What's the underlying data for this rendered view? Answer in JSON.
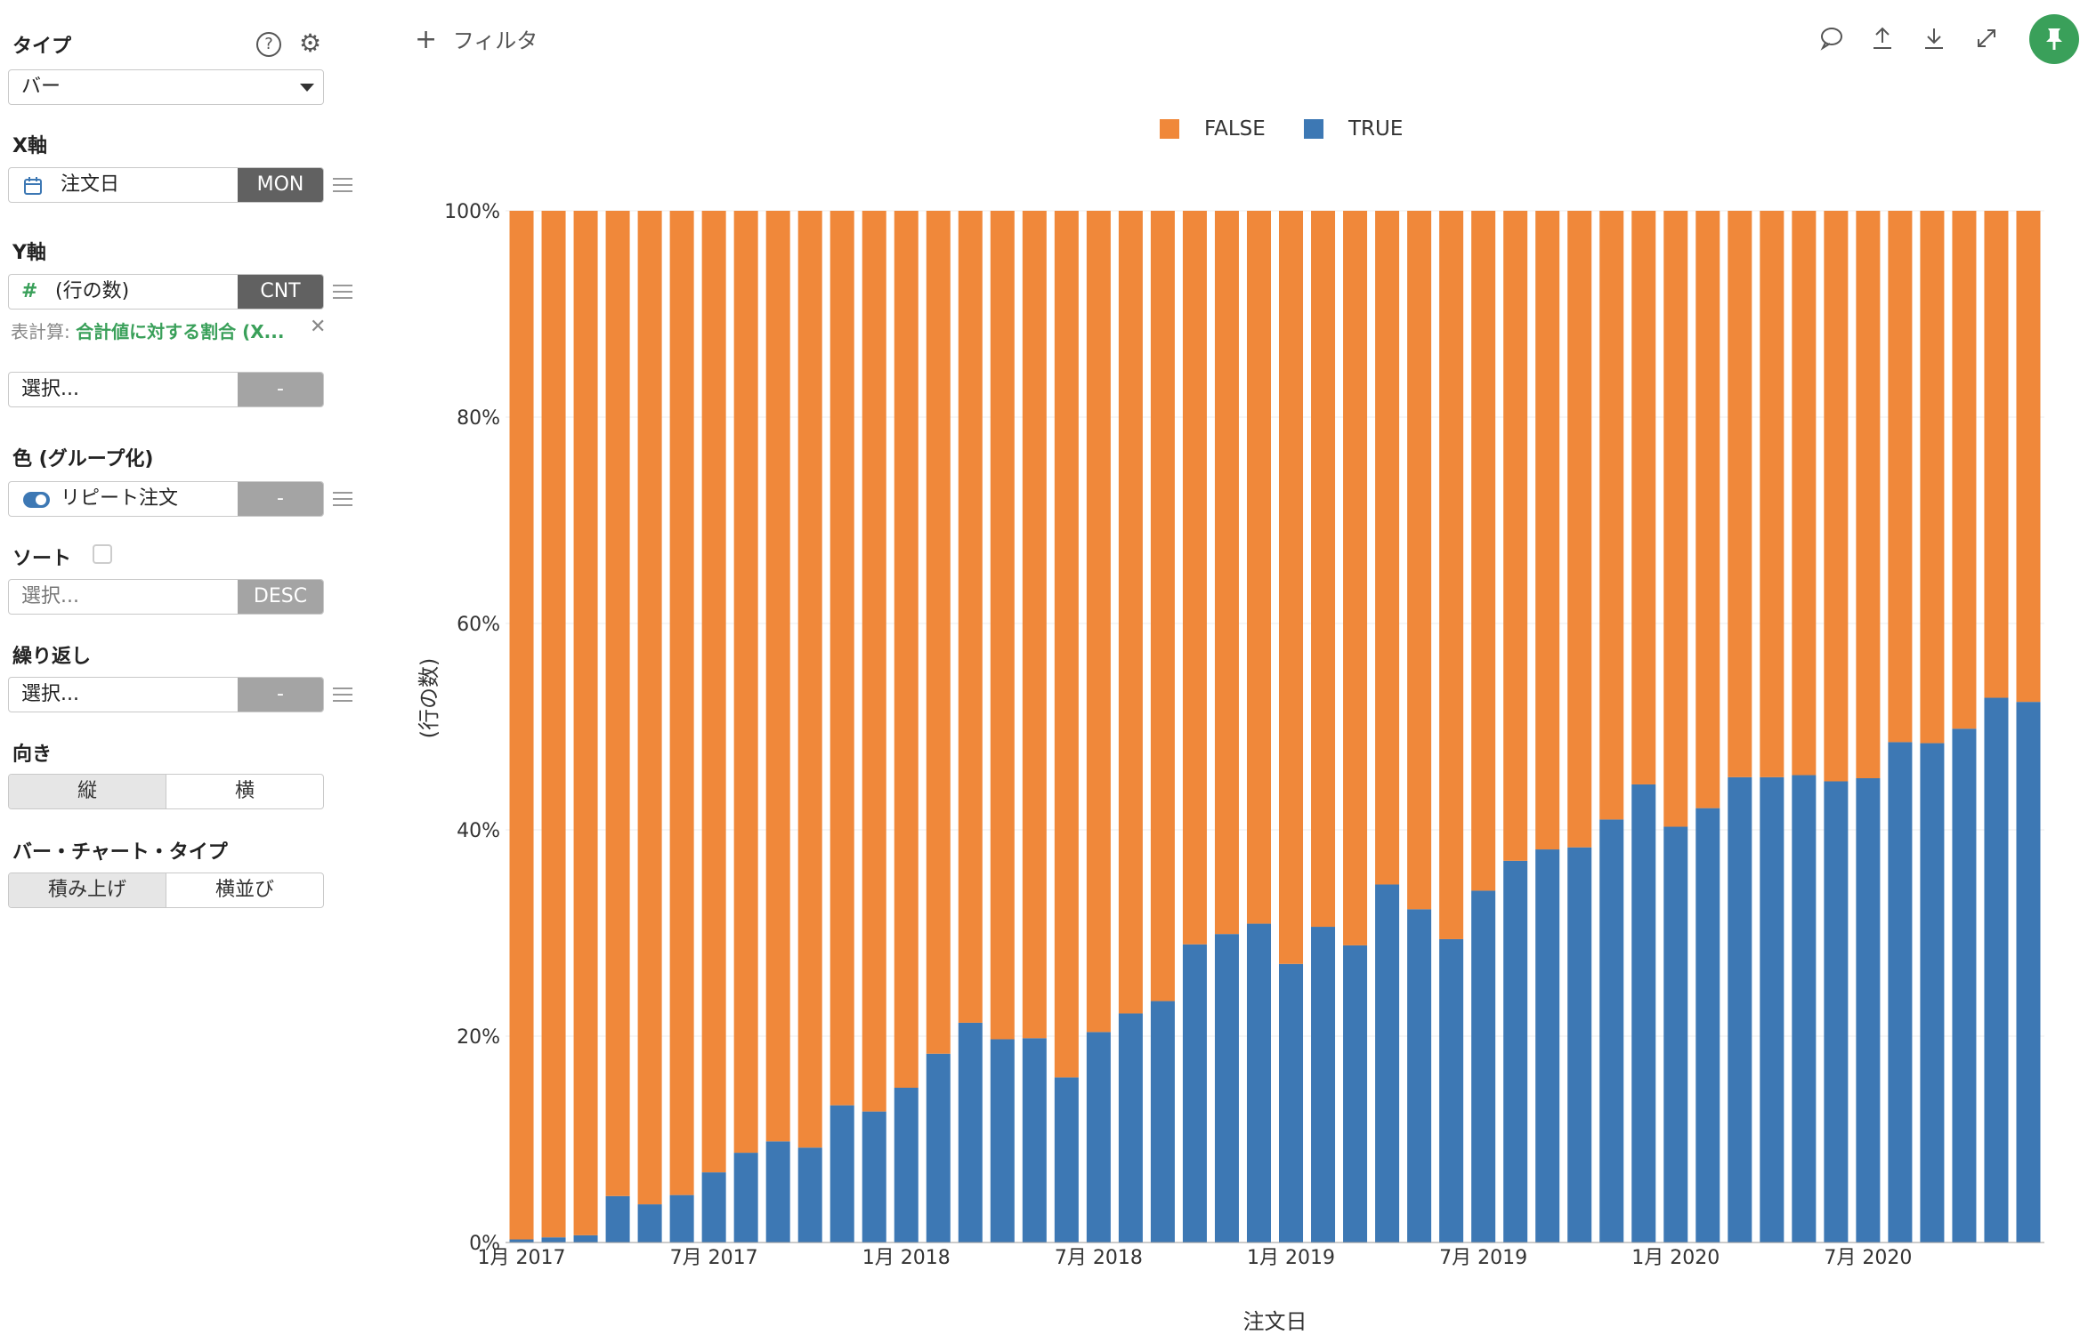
{
  "left": {
    "type_label": "タイプ",
    "type_value": "バー",
    "x_axis_label": "X軸",
    "x_field": "注文日",
    "x_agg": "MON",
    "y_axis_label": "Y軸",
    "y_field": "(行の数)",
    "y_agg": "CNT",
    "table_calc_prefix": "表計算:",
    "table_calc_value": "合計値に対する割合 (X...",
    "extra_select": "選択...",
    "extra_btn": "-",
    "color_label": "色 (グループ化)",
    "color_field": "リピート注文",
    "color_btn": "-",
    "sort_label": "ソート",
    "sort_select": "選択...",
    "sort_btn": "DESC",
    "repeat_label": "繰り返し",
    "repeat_select": "選択...",
    "repeat_btn": "-",
    "orient_label": "向き",
    "orient_vertical": "縦",
    "orient_horizontal": "横",
    "bartype_label": "バー・チャート・タイプ",
    "bartype_stacked": "積み上げ",
    "bartype_side": "横並び"
  },
  "toolbar": {
    "filter_plus": "+",
    "filter_label": "フィルタ"
  },
  "colors": {
    "false": "#F0883A",
    "true": "#3D78B4",
    "accent": "#3AA05A"
  },
  "chart_data": {
    "type": "bar",
    "stacked": true,
    "xlabel": "注文日",
    "ylabel": "(行の数)",
    "ylim": [
      0,
      100
    ],
    "yticks": [
      "0%",
      "20%",
      "40%",
      "60%",
      "80%",
      "100%"
    ],
    "xtick_labels": [
      {
        "label": "1月 2017",
        "index": 0
      },
      {
        "label": "7月 2017",
        "index": 6
      },
      {
        "label": "1月 2018",
        "index": 12
      },
      {
        "label": "7月 2018",
        "index": 18
      },
      {
        "label": "1月 2019",
        "index": 24
      },
      {
        "label": "7月 2019",
        "index": 30
      },
      {
        "label": "1月 2020",
        "index": 36
      },
      {
        "label": "7月 2020",
        "index": 42
      }
    ],
    "categories": [
      "2017-01",
      "2017-02",
      "2017-03",
      "2017-04",
      "2017-05",
      "2017-06",
      "2017-07",
      "2017-08",
      "2017-09",
      "2017-10",
      "2017-11",
      "2017-12",
      "2018-01",
      "2018-02",
      "2018-03",
      "2018-04",
      "2018-05",
      "2018-06",
      "2018-07",
      "2018-08",
      "2018-09",
      "2018-10",
      "2018-11",
      "2018-12",
      "2019-01",
      "2019-02",
      "2019-03",
      "2019-04",
      "2019-05",
      "2019-06",
      "2019-07",
      "2019-08",
      "2019-09",
      "2019-10",
      "2019-11",
      "2019-12",
      "2020-01",
      "2020-02",
      "2020-03",
      "2020-04",
      "2020-05",
      "2020-06",
      "2020-07",
      "2020-08",
      "2020-09",
      "2020-10",
      "2020-11",
      "2020-12"
    ],
    "series": [
      {
        "name": "TRUE",
        "values": [
          0.3,
          0.5,
          0.7,
          4.5,
          3.7,
          4.6,
          6.8,
          8.7,
          9.8,
          9.2,
          13.3,
          12.7,
          15,
          18.3,
          21.3,
          19.7,
          19.8,
          16,
          20.4,
          22.2,
          23.4,
          28.9,
          29.9,
          30.9,
          27,
          30.6,
          28.8,
          34.7,
          32.3,
          29.4,
          34.1,
          37,
          38.1,
          38.3,
          41,
          44.4,
          40.3,
          42.1,
          45.1,
          45.1,
          45.3,
          44.7,
          45,
          48.5,
          48.4,
          49.8,
          52.8,
          52.4
        ]
      },
      {
        "name": "FALSE",
        "values": [
          99.7,
          99.5,
          99.3,
          95.5,
          96.3,
          95.4,
          93.2,
          91.3,
          90.2,
          90.8,
          86.7,
          87.3,
          85,
          81.7,
          78.7,
          80.3,
          80.2,
          84,
          79.6,
          77.8,
          76.6,
          71.1,
          70.1,
          69.1,
          73,
          69.4,
          71.2,
          65.3,
          67.7,
          70.6,
          65.9,
          63,
          61.9,
          61.7,
          59,
          55.6,
          59.7,
          57.9,
          54.9,
          54.9,
          54.7,
          55.3,
          55,
          51.5,
          51.6,
          50.2,
          47.2,
          47.6
        ]
      }
    ],
    "legend": [
      {
        "name": "FALSE"
      },
      {
        "name": "TRUE"
      }
    ],
    "legend_position": "top-center",
    "grid": true
  }
}
